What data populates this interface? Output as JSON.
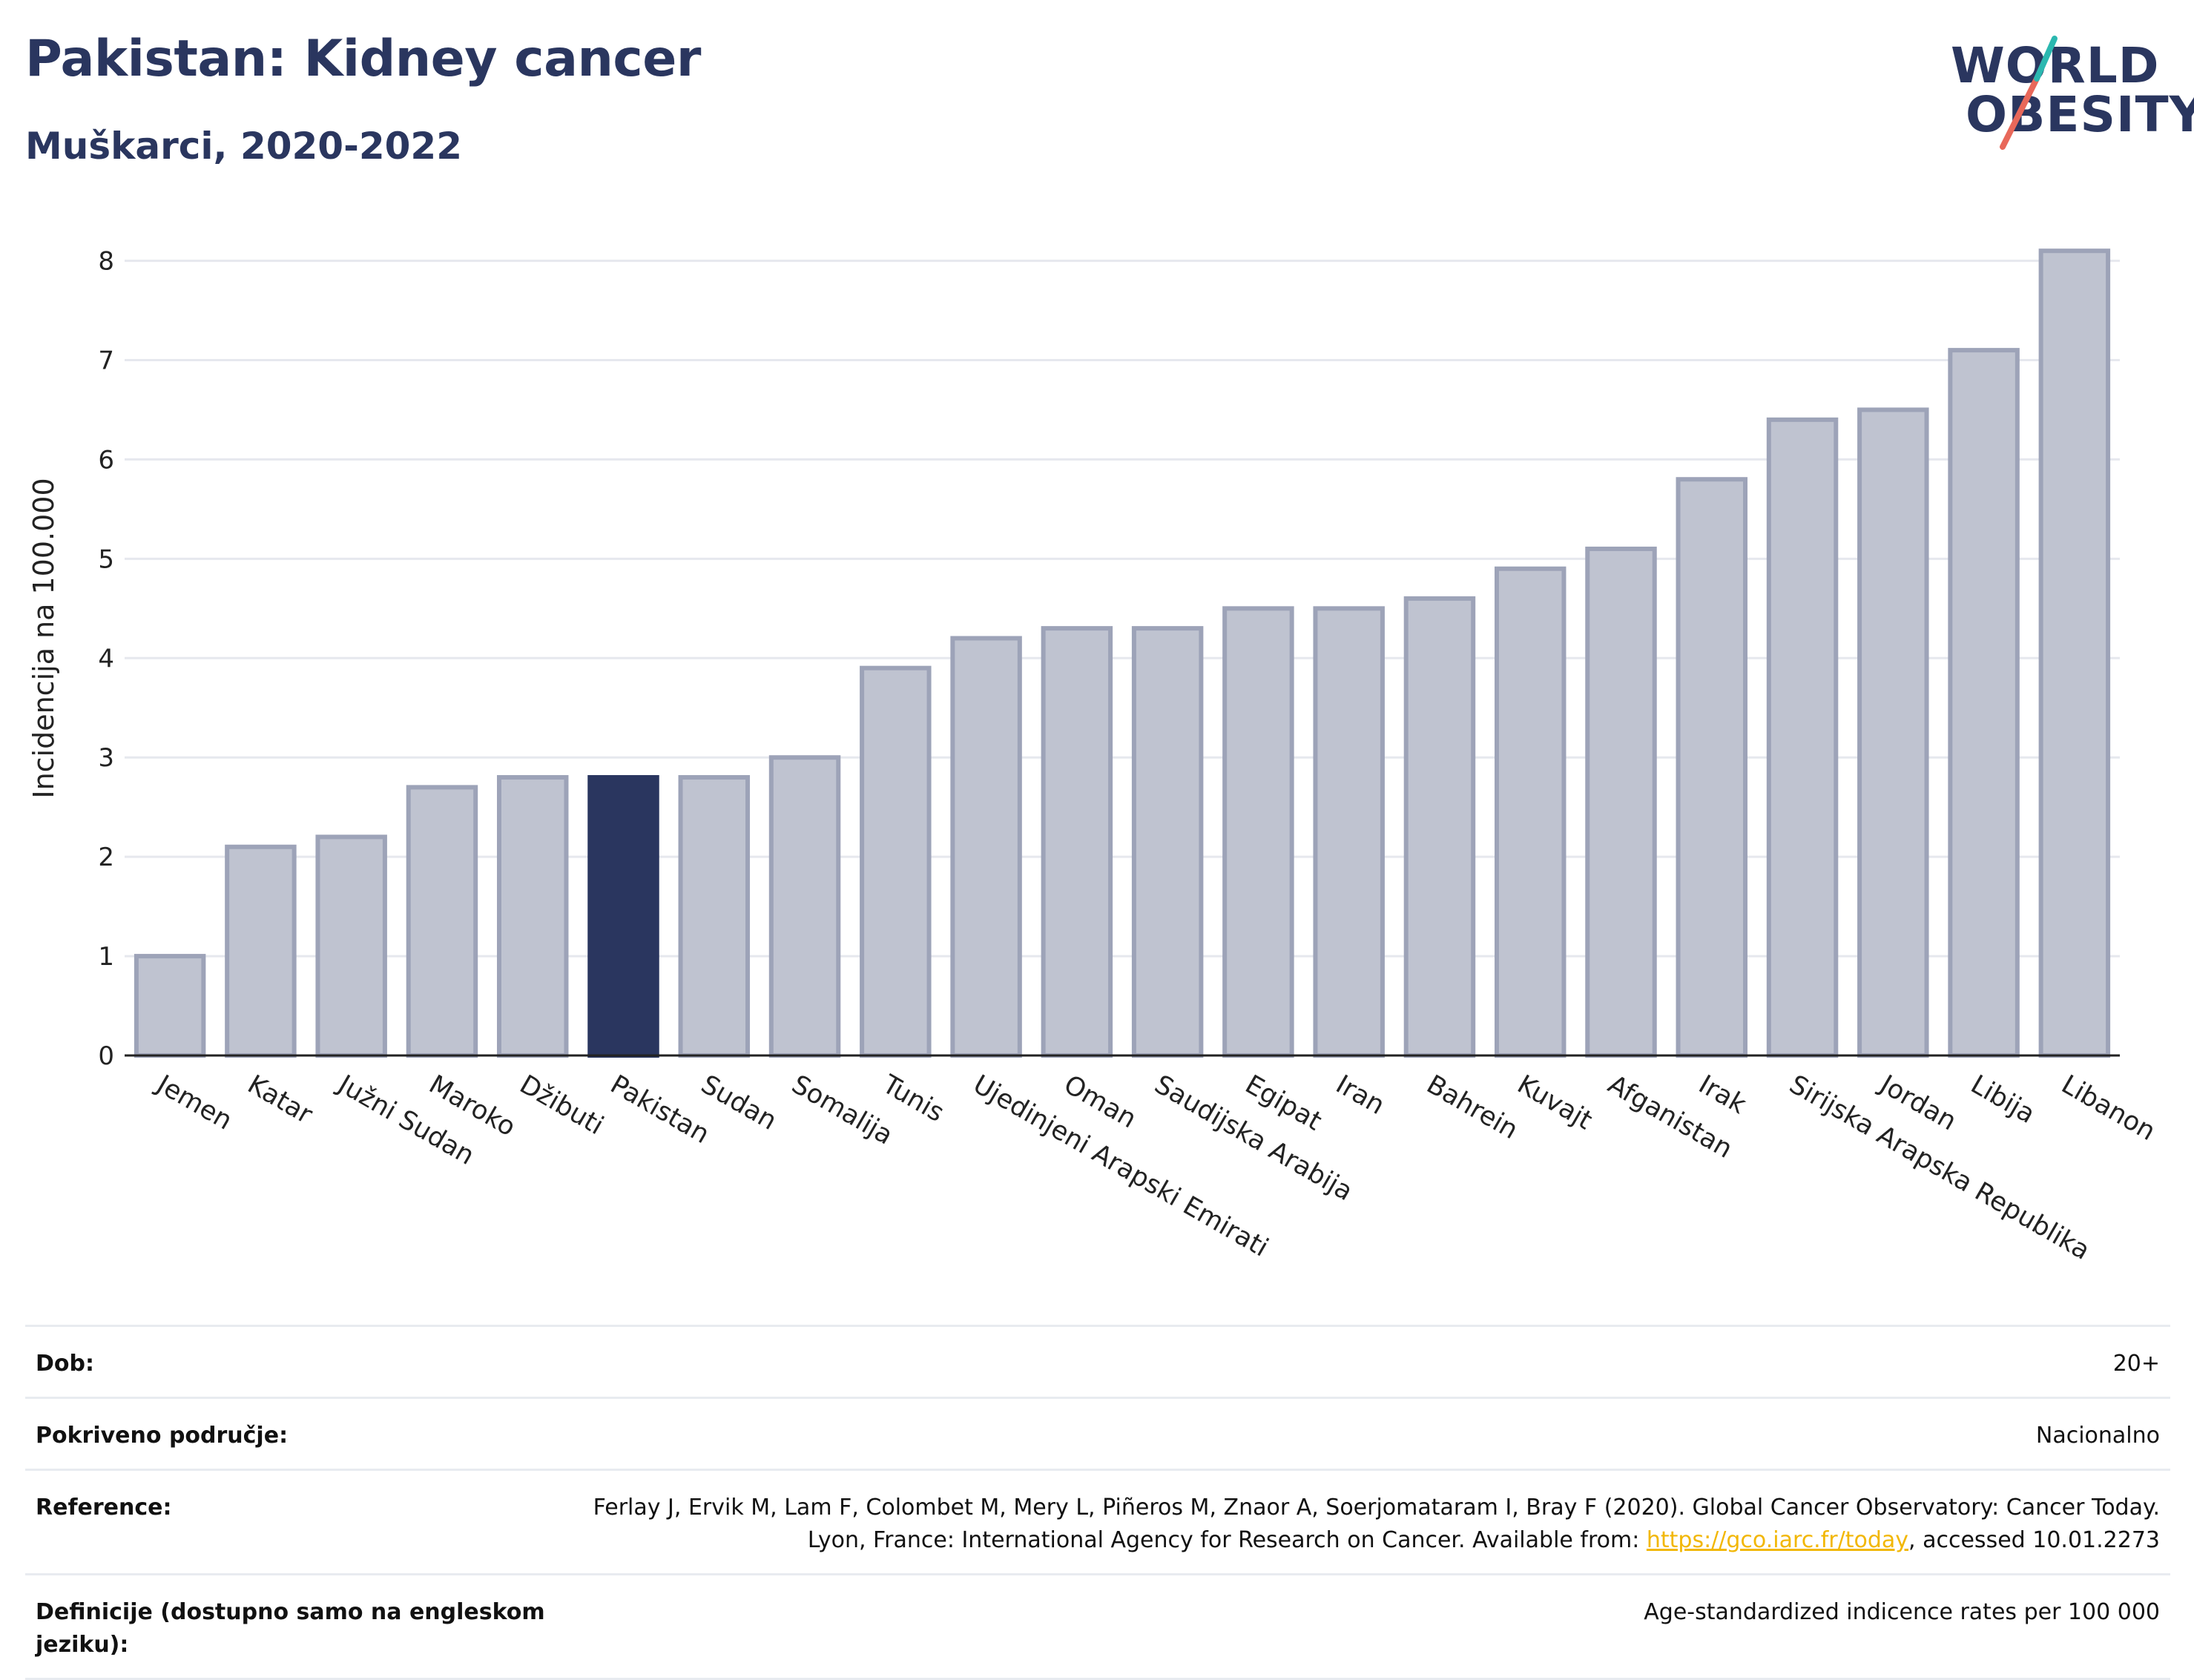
{
  "header": {
    "title": "Pakistan: Kidney cancer",
    "subtitle": "Muškarci, 2020-2022"
  },
  "logo": {
    "line1": "WORLD",
    "line2": "OBESITY"
  },
  "colors": {
    "bar": "#bfc3d0",
    "bar_border": "#9da3b8",
    "highlight": "#2a365f",
    "grid": "#e6e8ee",
    "axis": "#222222"
  },
  "chart_data": {
    "type": "bar",
    "ylabel": "Incidencija na 100.000",
    "ylim": [
      0,
      8.4
    ],
    "yticks": [
      0,
      1,
      2,
      3,
      4,
      5,
      6,
      7,
      8
    ],
    "grid": true,
    "highlight": "Pakistan",
    "categories": [
      "Jemen",
      "Katar",
      "Južni Sudan",
      "Maroko",
      "Džibuti",
      "Pakistan",
      "Sudan",
      "Somalija",
      "Tunis",
      "Ujedinjeni Arapski Emirati",
      "Oman",
      "Saudijska Arabija",
      "Egipat",
      "Iran",
      "Bahrein",
      "Kuvajt",
      "Afganistan",
      "Irak",
      "Sirijska Arapska Republika",
      "Jordan",
      "Libija",
      "Libanon"
    ],
    "values": [
      1.0,
      2.1,
      2.2,
      2.7,
      2.8,
      2.8,
      2.8,
      3.0,
      3.9,
      4.2,
      4.3,
      4.3,
      4.5,
      4.5,
      4.6,
      4.9,
      5.1,
      5.8,
      6.4,
      6.5,
      7.1,
      8.1
    ]
  },
  "info": {
    "rows": [
      {
        "key": "Dob:",
        "value": "20+"
      },
      {
        "key": "Pokriveno područje:",
        "value": "Nacionalno"
      },
      {
        "key": "Reference:",
        "value_pre": "Ferlay J, Ervik M, Lam F, Colombet M, Mery L, Piñeros M, Znaor A, Soerjomataram I, Bray F (2020). Global Cancer Observatory: Cancer Today. Lyon, France: International Agency for Research on Cancer. Available from: ",
        "link": "https://gco.iarc.fr/today",
        "value_post": ", accessed 10.01.2273"
      },
      {
        "key": "Definicije (dostupno samo na engleskom jeziku):",
        "value": "Age-standardized indicence rates per 100 000"
      }
    ]
  }
}
